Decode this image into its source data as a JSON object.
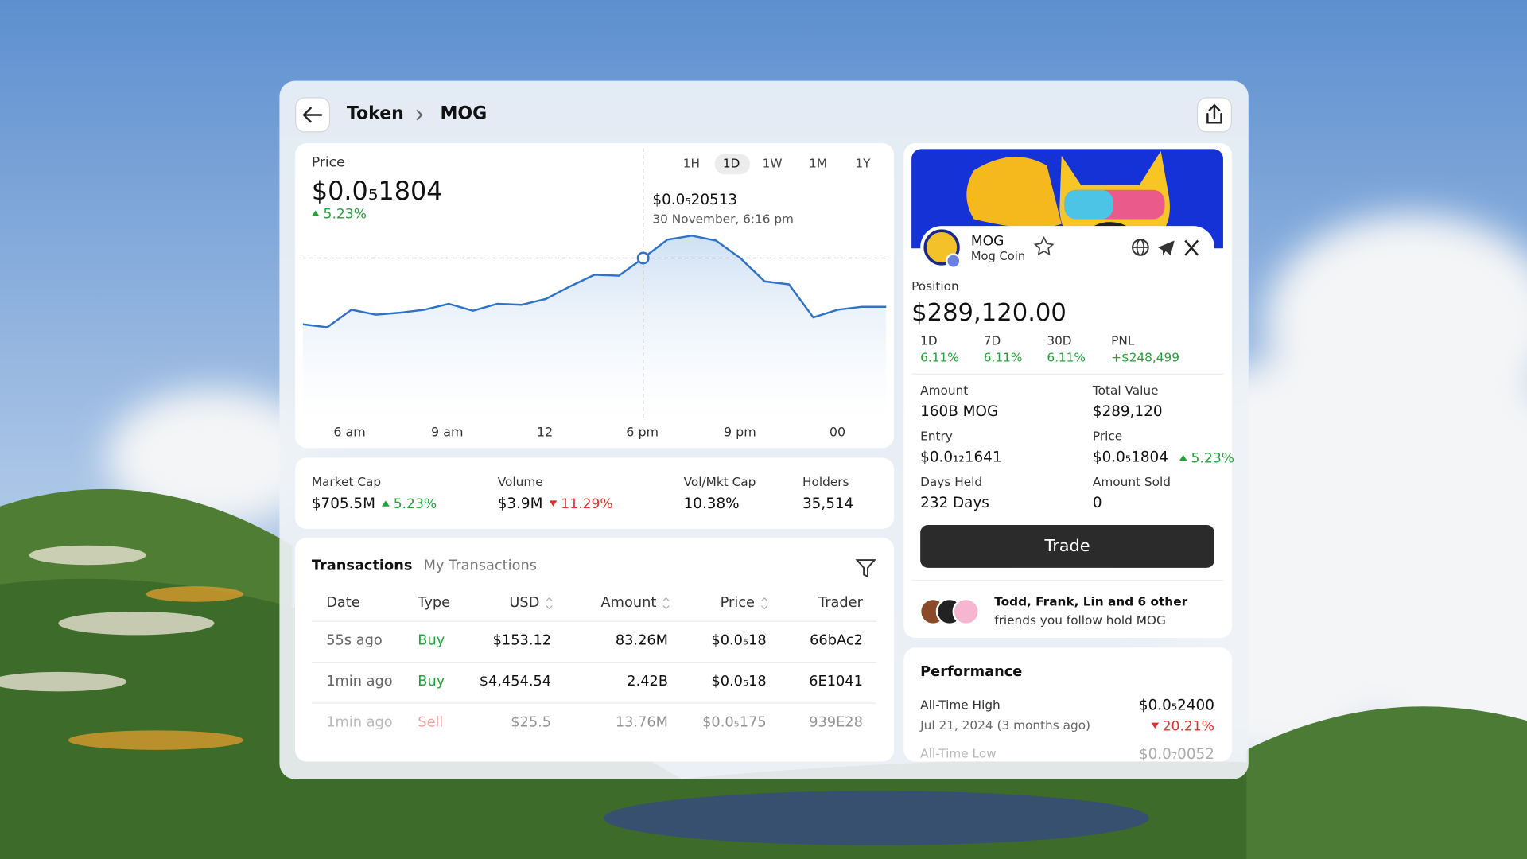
{
  "header": {
    "breadcrumb": [
      "Token",
      "MOG"
    ]
  },
  "price": {
    "label": "Price",
    "value": "$0.0₅1804",
    "change": "5.23%",
    "ranges": [
      "1H",
      "1D",
      "1W",
      "1M",
      "1Y"
    ],
    "active_range": "1D",
    "tooltip": {
      "price": "$0.0₅20513",
      "time": "30 November, 6:16 pm"
    },
    "chart": {
      "type": "line",
      "color": "#2f72c7",
      "x_labels": [
        "6 am",
        "9 am",
        "12",
        "6 pm",
        "9 pm",
        "00"
      ],
      "values": [
        1.715e-06,
        1.7e-06,
        1.789e-06,
        1.764e-06,
        1.774e-06,
        1.789e-06,
        1.819e-06,
        1.784e-06,
        1.819e-06,
        1.814e-06,
        1.844e-06,
        1.908e-06,
        1.967e-06,
        1.962e-06,
        2.0513e-06,
        2.145e-06,
        2.165e-06,
        2.14e-06,
        2.051e-06,
        1.933e-06,
        1.918e-06,
        1.75e-06,
        1.789e-06,
        1.804e-06,
        1.804e-06
      ],
      "ylim": [
        1.4e-06,
        2.3e-06
      ]
    }
  },
  "stats": [
    {
      "label": "Market Cap",
      "value": "$705.5M",
      "change": "5.23%",
      "direction": "up"
    },
    {
      "label": "Volume",
      "value": "$3.9M",
      "change": "11.29%",
      "direction": "down"
    },
    {
      "label": "Vol/Mkt Cap",
      "value": "10.38%"
    },
    {
      "label": "Holders",
      "value": "35,514"
    }
  ],
  "transactions": {
    "tabs": [
      "Transactions",
      "My Transactions"
    ],
    "columns": [
      "Date",
      "Type",
      "USD",
      "Amount",
      "Price",
      "Trader"
    ],
    "rows": [
      [
        "55s ago",
        "Buy",
        "$153.12",
        "83.26M",
        "$0.0₅18",
        "66bAc2"
      ],
      [
        "1min ago",
        "Buy",
        "$4,454.54",
        "2.42B",
        "$0.0₅18",
        "6E1041"
      ],
      [
        "1min ago",
        "Sell",
        "$25.5",
        "13.76M",
        "$0.0₅175",
        "939E28"
      ]
    ]
  },
  "token": {
    "symbol": "MOG",
    "name": "Mog Coin"
  },
  "position": {
    "label": "Position",
    "value": "$289,120.00",
    "periods": [
      {
        "label": "1D",
        "value": "6.11%"
      },
      {
        "label": "7D",
        "value": "6.11%"
      },
      {
        "label": "30D",
        "value": "6.11%"
      },
      {
        "label": "PNL",
        "value": "+$248,499"
      }
    ],
    "details": [
      {
        "label": "Amount",
        "value": "160B MOG"
      },
      {
        "label": "Total Value",
        "value": "$289,120"
      },
      {
        "label": "Entry",
        "value": "$0.0₁₂1641"
      },
      {
        "label": "Price",
        "value": "$0.0₅1804",
        "change": "5.23%"
      },
      {
        "label": "Days Held",
        "value": "232 Days"
      },
      {
        "label": "Amount Sold",
        "value": "0"
      }
    ],
    "trade": "Trade",
    "friends": [
      "Todd, Frank, Lin and 6 other",
      "friends you follow hold MOG"
    ]
  },
  "performance": {
    "title": "Performance",
    "high": {
      "label": "All-Time High",
      "value": "$0.0₅2400",
      "date": "Jul 21, 2024 (3 months ago)",
      "change": "20.21%"
    },
    "low": {
      "label": "All-Time Low",
      "value": "$0.0₇0052"
    }
  }
}
